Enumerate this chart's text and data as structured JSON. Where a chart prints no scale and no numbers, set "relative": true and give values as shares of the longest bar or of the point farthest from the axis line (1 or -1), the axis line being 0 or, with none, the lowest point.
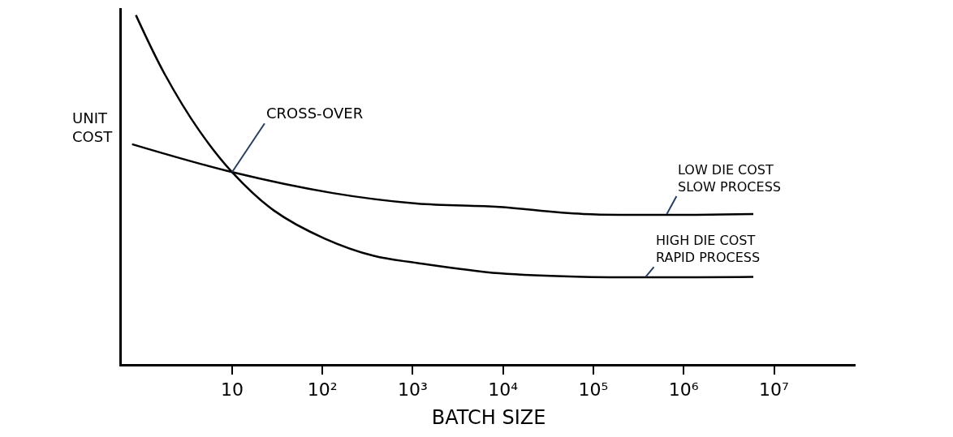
{
  "chart_data": {
    "type": "line",
    "relative": true,
    "xlabel": "BATCH SIZE",
    "ylabel": "UNIT\nCOST",
    "log": "x",
    "xlim": [
      0.6,
      80000000.0
    ],
    "xticks": [
      10,
      {
        "value": 100,
        "label": "10²"
      },
      {
        "value": 1000,
        "label": "10³"
      },
      {
        "value": 10000,
        "label": "10⁴"
      },
      {
        "value": 100000,
        "label": "10⁵"
      },
      {
        "value": 1000000,
        "label": "10⁶"
      },
      {
        "value": 10000000,
        "label": "10⁷"
      }
    ],
    "marker": "none",
    "line_style": "solid",
    "series": [
      {
        "color": "#000000",
        "x": [
          0.78,
          10,
          130,
          1100,
          9100,
          78000,
          5900000
        ],
        "values": [
          0.63,
          0.55,
          0.49,
          0.46,
          0.45,
          0.43,
          0.43
        ]
      },
      {
        "color": "#000000",
        "x": [
          0.86,
          1.8,
          4.3,
          10,
          29,
          105,
          370,
          1100,
          9100,
          78000,
          5900000
        ],
        "values": [
          1.0,
          0.83,
          0.67,
          0.55,
          0.44,
          0.36,
          0.31,
          0.29,
          0.26,
          0.25,
          0.25
        ]
      }
    ],
    "annotations": [
      {
        "text": "CROSS-OVER",
        "x": 10,
        "y": 0.55
      },
      {
        "text": "LOW DIE COST\nSLOW PROCESS",
        "x": 650000,
        "y": 0.43
      },
      {
        "text": "HIGH DIE COST\nRAPID PROCESS",
        "x": 380000,
        "y": 0.25
      }
    ]
  }
}
